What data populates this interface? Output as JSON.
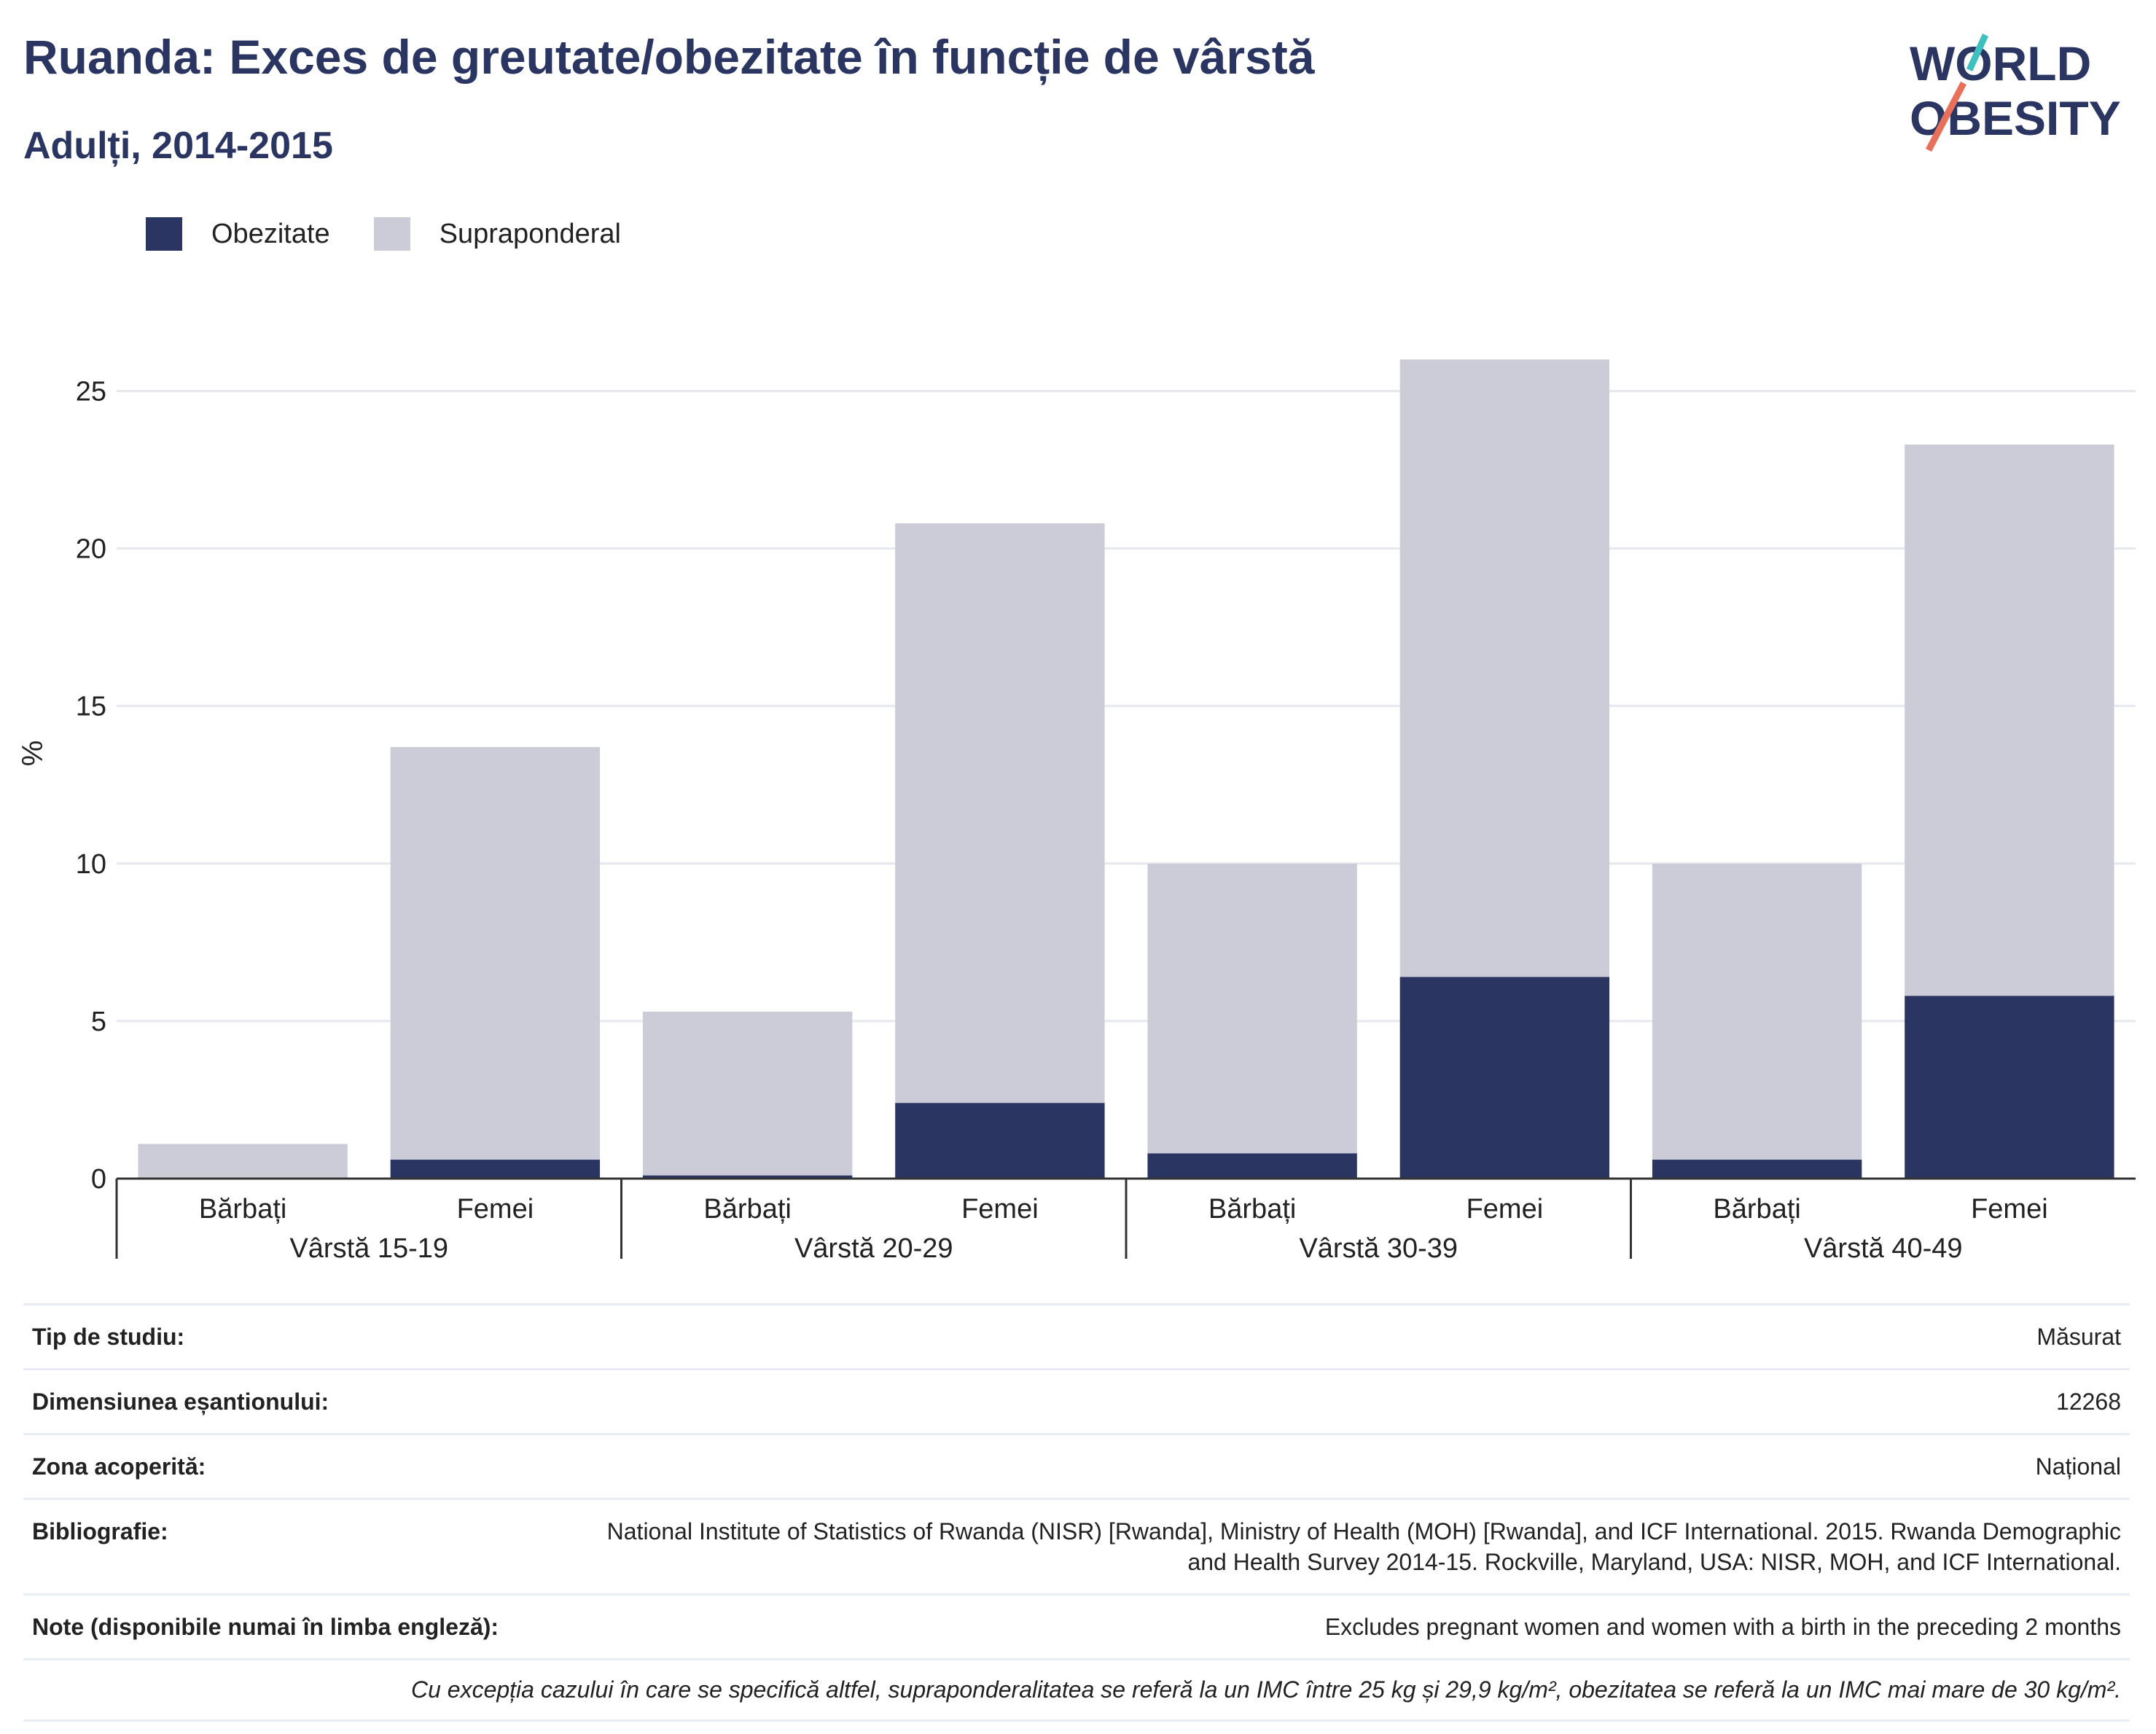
{
  "title": "Ruanda: Exces de greutate/obezitate în funcție de vârstă",
  "subtitle": "Adulți, 2014-2015",
  "logo": {
    "line1": "WORLD",
    "line2": "OBESITY"
  },
  "colors": {
    "obesity": "#2a3562",
    "overweight": "#cbccd8",
    "title": "#2a3562",
    "grid": "#e6e8f0",
    "axis": "#333333",
    "logo_teal": "#3fbfbf",
    "logo_coral": "#e8705a"
  },
  "chart_data": {
    "type": "bar",
    "stacked": true,
    "ylabel": "%",
    "ylim": [
      0,
      27
    ],
    "yticks": [
      0,
      5,
      10,
      15,
      20,
      25
    ],
    "grid": true,
    "legend_position": "top-left",
    "groups": [
      "Vârstă 15-19",
      "Vârstă 20-29",
      "Vârstă 30-39",
      "Vârstă 40-49"
    ],
    "sub_categories": [
      "Bărbați",
      "Femei"
    ],
    "series": [
      {
        "name": "Obezitate",
        "values": [
          0.0,
          0.6,
          0.1,
          2.4,
          0.8,
          6.4,
          0.6,
          5.8
        ]
      },
      {
        "name": "Supraponderal",
        "values": [
          1.1,
          13.1,
          5.2,
          18.4,
          9.2,
          19.6,
          9.4,
          17.5
        ]
      }
    ]
  },
  "info": {
    "rows": [
      {
        "label": "Tip de studiu:",
        "value": "Măsurat"
      },
      {
        "label": "Dimensiunea eșantionului:",
        "value": "12268"
      },
      {
        "label": "Zona acoperită:",
        "value": "Național"
      },
      {
        "label": "Bibliografie:",
        "value": "National Institute of Statistics of Rwanda (NISR) [Rwanda], Ministry of Health (MOH) [Rwanda], and ICF International. 2015. Rwanda Demographic and Health Survey 2014-15. Rockville, Maryland, USA: NISR, MOH, and ICF International."
      },
      {
        "label": "Note (disponibile numai în limba engleză):",
        "value": "Excludes pregnant women and women with a birth in the preceding 2 months"
      }
    ],
    "footnote": "Cu excepția cazului în care se specifică altfel, supraponderalitatea se referă la un IMC între 25 kg și 29,9 kg/m², obezitatea se referă la un IMC mai mare de 30 kg/m²."
  }
}
